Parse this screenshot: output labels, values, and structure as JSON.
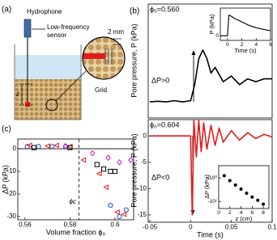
{
  "panel_labels": [
    "(a)",
    "(b)",
    "(c)"
  ],
  "diagram": {
    "hydrophone": "Hydrophone",
    "sensor": [
      "Low-frequency",
      "sensor"
    ],
    "scale": "2 mm",
    "depth": "z",
    "grid": "Grid"
  },
  "chart_data": [
    {
      "type": "line",
      "color": "#000000",
      "y_label": "Pore pressure, P (kPa)",
      "x": [
        -0.05,
        -0.04,
        -0.03,
        -0.02,
        -0.01,
        0,
        0.005,
        0.01,
        0.015,
        0.02,
        0.025,
        0.03,
        0.04,
        0.05,
        0.06,
        0.07,
        0.08,
        0.09,
        0.1
      ],
      "values": [
        0,
        0.01,
        0,
        0.02,
        0,
        0.02,
        0.3,
        0.75,
        0.9,
        0.75,
        0.5,
        0.6,
        0.35,
        0.45,
        0.3,
        0.4,
        0.35,
        0.4,
        0.4
      ],
      "xlim": [
        -0.052,
        0.1
      ],
      "ylim": [
        -0.28,
        1.7
      ],
      "annotations": [
        "ϕ₀=0.560",
        "ΔP>0"
      ]
    },
    {
      "type": "line",
      "color": "#e41a1c",
      "x_label": "Time (s)",
      "y_label": "Pore pressure, P (kPa)",
      "x": [
        -0.05,
        -0.03,
        -0.01,
        0,
        0.002,
        0.004,
        0.007,
        0.01,
        0.013,
        0.016,
        0.02,
        0.025,
        0.03,
        0.035,
        0.04,
        0.05,
        0.06,
        0.07,
        0.08,
        0.09,
        0.1
      ],
      "values": [
        0,
        0,
        0,
        0,
        -15,
        3,
        -4,
        3,
        -3,
        2.5,
        -2.5,
        2,
        -1.8,
        1.5,
        -1.2,
        1,
        -0.8,
        0.6,
        -0.5,
        0.3,
        -0.2
      ],
      "xlim": [
        -0.052,
        0.1
      ],
      "ylim": [
        -16.4,
        3.1
      ],
      "xticks": [
        -0.05,
        0,
        0.05,
        0.1
      ],
      "yticks": [
        -15,
        -10,
        -5,
        0
      ],
      "annotations": [
        "ϕ₀=0.604",
        "ΔP<0"
      ]
    },
    {
      "type": "line",
      "color": "#000000",
      "x_label": "Time (s)",
      "y_label": "P (kPa)",
      "x": [
        -1,
        0,
        0.2,
        0.5,
        1,
        2,
        3,
        4,
        5,
        6
      ],
      "values": [
        0,
        0,
        0.9,
        0.85,
        0.75,
        0.6,
        0.45,
        0.35,
        0.28,
        0.22
      ],
      "xlim": [
        -1,
        6
      ],
      "ylim": [
        -0.2,
        1.2
      ],
      "xticks": [
        0,
        2,
        4,
        6
      ],
      "yticks": [
        0
      ]
    },
    {
      "type": "scatter",
      "x_label": "z (cm)",
      "y_label": "ΔP (kPa)",
      "log_y": true,
      "series": [
        {
          "color": "#000000",
          "marker": "circle",
          "x": [
            1,
            2,
            3,
            4,
            5,
            6,
            7,
            8
          ],
          "values": [
            -0.8,
            -1.3,
            -2,
            -3,
            -4.5,
            -6.5,
            -9,
            -13
          ]
        }
      ],
      "xlim": [
        0,
        9
      ],
      "ylim": [
        -20,
        -0.3
      ],
      "xticks": [
        0,
        2,
        4,
        6,
        8
      ],
      "yticks": [
        {
          "value": -10,
          "label": "-10¹"
        },
        {
          "value": -1,
          "label": "-10⁰"
        }
      ]
    },
    {
      "type": "scatter",
      "x_label": "Volume fraction ϕ₀",
      "y_label": "ΔP (kPa)",
      "zero_line": true,
      "reference_x": 0.584,
      "reference_label": "ϕc",
      "series": [
        {
          "color": "#1f4fbf",
          "marker": "circle",
          "x": [
            0.561,
            0.566,
            0.572,
            0.578,
            0.598,
            0.602,
            0.605
          ],
          "values": [
            1,
            1,
            1,
            0.8,
            -25,
            -30,
            -27
          ]
        },
        {
          "color": "#e41a1c",
          "marker": "triangle",
          "x": [
            0.562,
            0.57,
            0.574,
            0.58,
            0.586,
            0.593,
            0.596,
            0.601,
            0.604
          ],
          "values": [
            1.5,
            1.2,
            1.5,
            1,
            -5,
            -11,
            -17,
            -28,
            -29
          ]
        },
        {
          "color": "#000000",
          "marker": "square",
          "x": [
            0.564,
            0.58,
            0.592,
            0.595,
            0.598,
            0.6
          ],
          "values": [
            0.5,
            0.5,
            -7,
            -9,
            -10,
            -10
          ]
        },
        {
          "color": "#c71fc7",
          "marker": "diamond",
          "x": [
            0.578,
            0.59,
            0.597,
            0.602,
            0.607
          ],
          "values": [
            1.2,
            -2,
            -4,
            -6,
            -5
          ]
        }
      ],
      "xlim": [
        0.5568,
        0.6083
      ],
      "ylim": [
        -31.4,
        4.3
      ],
      "xticks": [
        0.56,
        0.58,
        0.6
      ],
      "yticks": [
        -30,
        -20,
        -10,
        0
      ]
    }
  ]
}
